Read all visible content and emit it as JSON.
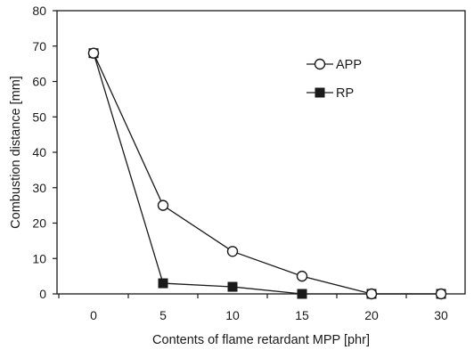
{
  "chart_data": {
    "type": "line",
    "categories": [
      "0",
      "5",
      "10",
      "15",
      "20",
      "30"
    ],
    "series": [
      {
        "name": "APP",
        "values": [
          68,
          25,
          12,
          5,
          0,
          0
        ],
        "marker": "open-circle",
        "color": "#1a1a1a"
      },
      {
        "name": "RP",
        "values": [
          68,
          3,
          2,
          0,
          0,
          0
        ],
        "marker": "filled-square",
        "color": "#1a1a1a"
      }
    ],
    "xlabel": "Contents of flame retardant MPP [phr]",
    "ylabel": "Combustion distance [mm]",
    "ylim": [
      0,
      80
    ],
    "yticks": [
      0,
      10,
      20,
      30,
      40,
      50,
      60,
      70,
      80
    ],
    "grid": false,
    "legend": "top-right"
  }
}
